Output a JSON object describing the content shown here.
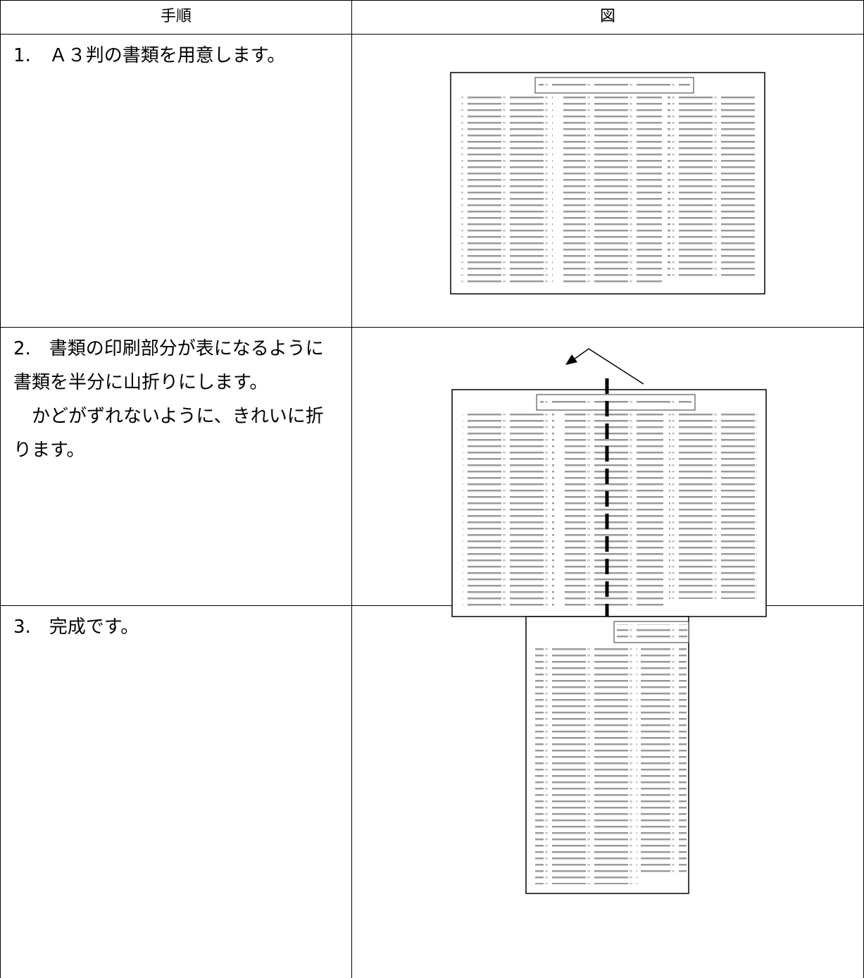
{
  "table": {
    "headers": [
      "手順",
      "図"
    ],
    "rows": [
      [
        "1.　Ａ３判の書類を用意します。"
      ],
      [
        "2.　書類の印刷部分が表になるように書類を半分に山折りにします。",
        "かどがずれないように、きれいに折ります。"
      ],
      [
        "3.　完成です。"
      ]
    ]
  }
}
